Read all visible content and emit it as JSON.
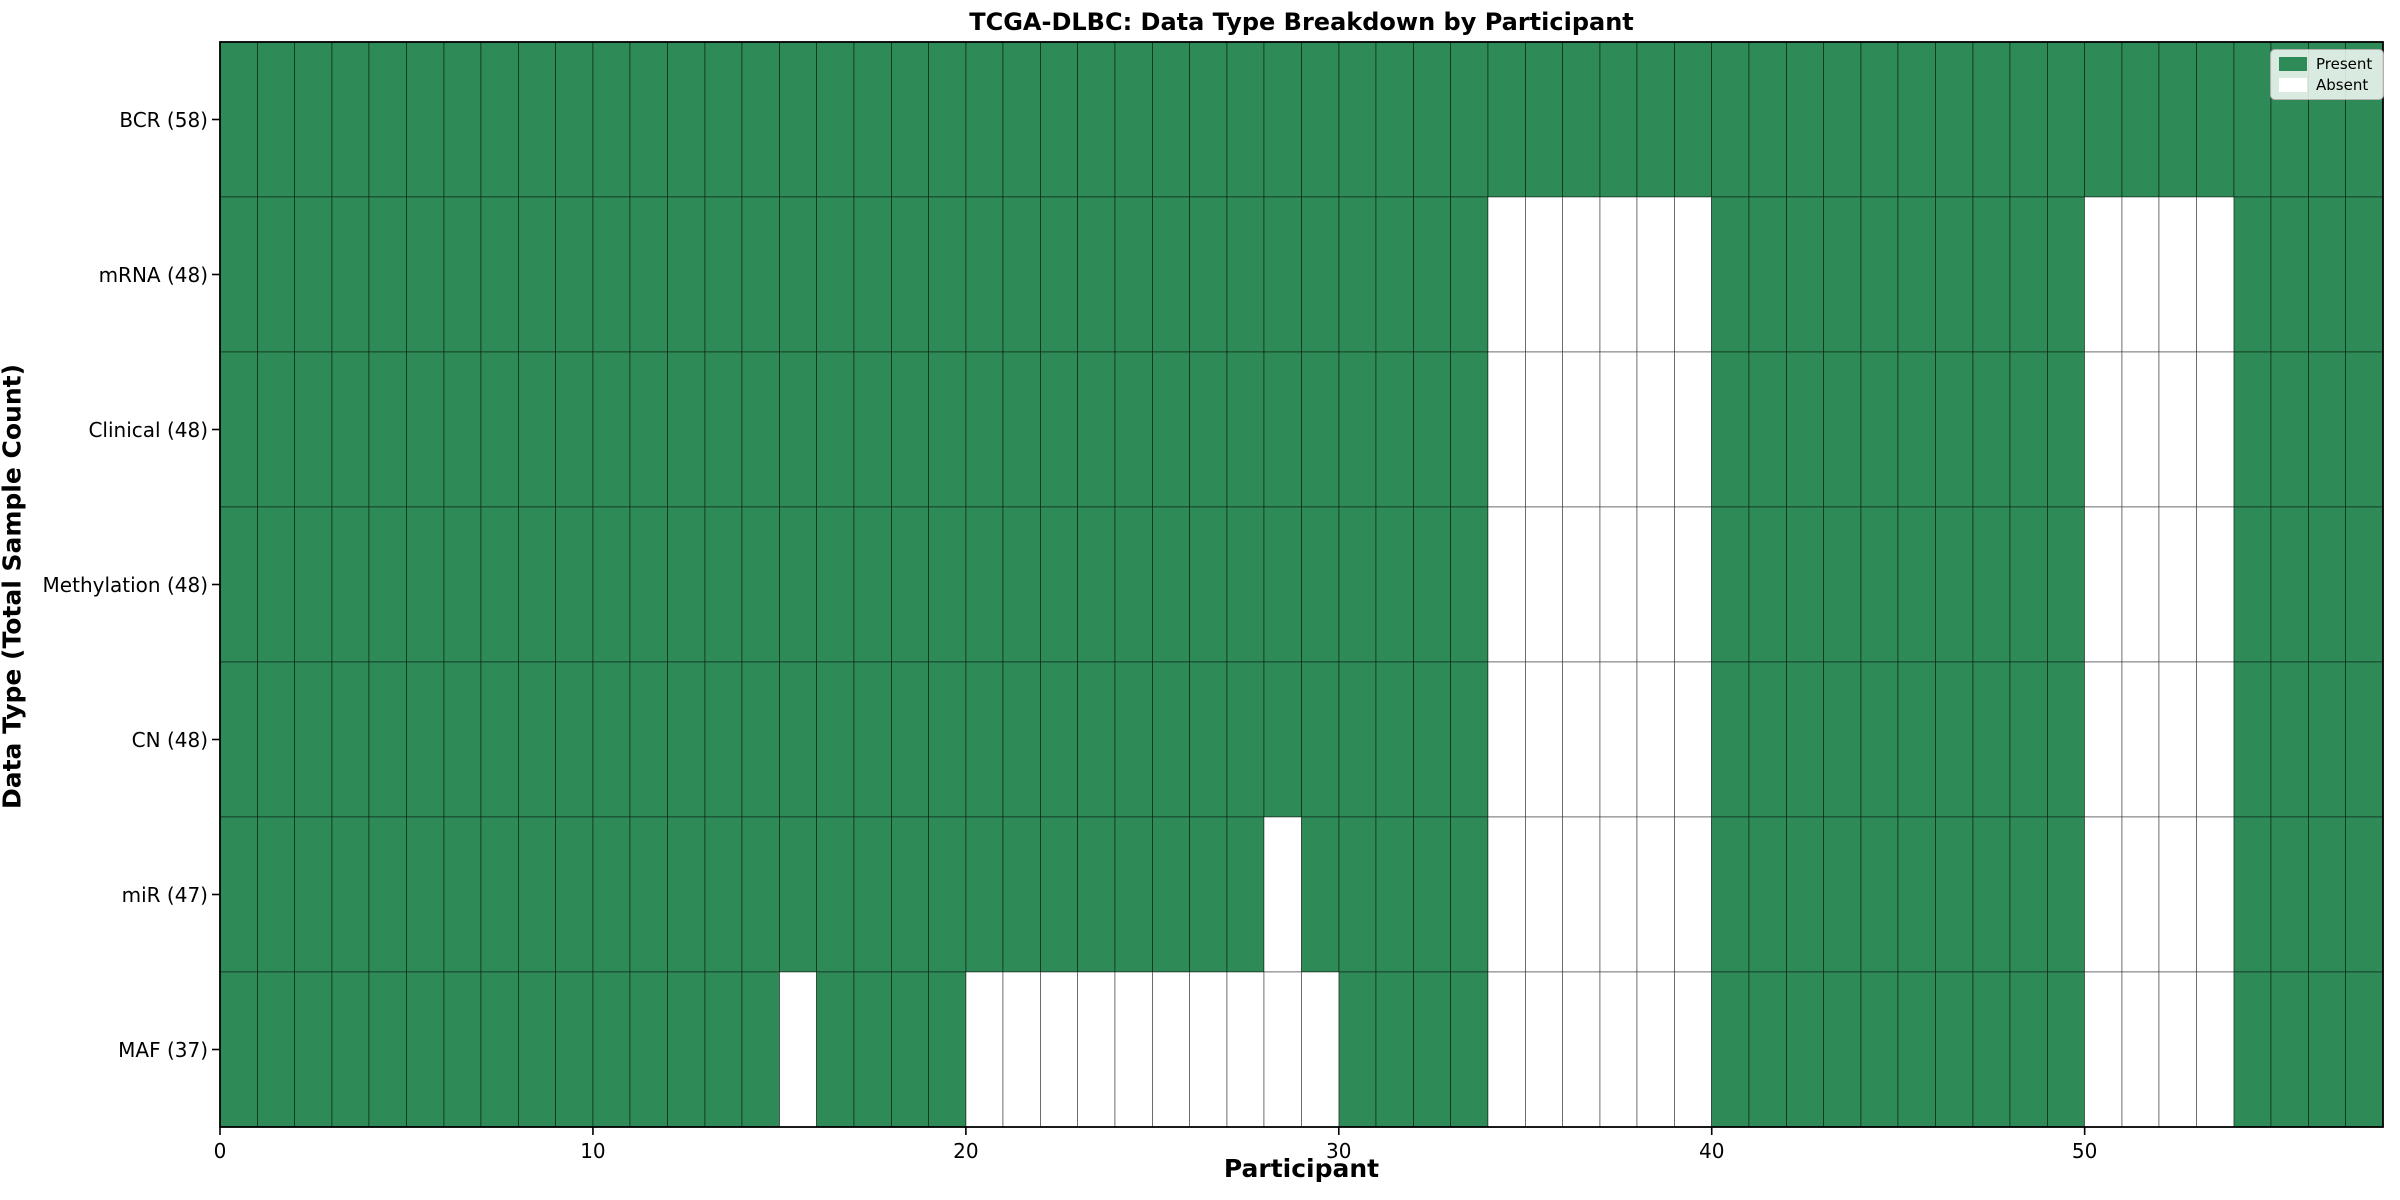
{
  "figure": {
    "title": "TCGA-DLBC: Data Type Breakdown by Participant",
    "xlabel": "Participant",
    "ylabel": "Data Type (Total Sample Count)"
  },
  "legend": {
    "items": [
      {
        "label": "Present",
        "color": "#2e8b57"
      },
      {
        "label": "Absent",
        "color": "#ffffff"
      }
    ]
  },
  "chart_data": {
    "type": "heatmap",
    "title": "TCGA-DLBC: Data Type Breakdown by Participant",
    "xlabel": "Participant",
    "ylabel": "Data Type (Total Sample Count)",
    "n_participants": 58,
    "x_range": [
      0,
      58
    ],
    "x_ticks": [
      0,
      10,
      20,
      30,
      40,
      50
    ],
    "cell_states": [
      "present",
      "absent"
    ],
    "rows": [
      {
        "label": "BCR (58)",
        "data_type": "BCR",
        "total_samples": 58,
        "absent_participants": []
      },
      {
        "label": "mRNA (48)",
        "data_type": "mRNA",
        "total_samples": 48,
        "absent_participants": [
          34,
          35,
          36,
          37,
          38,
          39,
          50,
          51,
          52,
          53
        ]
      },
      {
        "label": "Clinical (48)",
        "data_type": "Clinical",
        "total_samples": 48,
        "absent_participants": [
          34,
          35,
          36,
          37,
          38,
          39,
          50,
          51,
          52,
          53
        ]
      },
      {
        "label": "Methylation (48)",
        "data_type": "Methylation",
        "total_samples": 48,
        "absent_participants": [
          34,
          35,
          36,
          37,
          38,
          39,
          50,
          51,
          52,
          53
        ]
      },
      {
        "label": "CN (48)",
        "data_type": "CN",
        "total_samples": 48,
        "absent_participants": [
          34,
          35,
          36,
          37,
          38,
          39,
          50,
          51,
          52,
          53
        ]
      },
      {
        "label": "miR (47)",
        "data_type": "miR",
        "total_samples": 47,
        "absent_participants": [
          28,
          34,
          35,
          36,
          37,
          38,
          39,
          50,
          51,
          52,
          53
        ]
      },
      {
        "label": "MAF (37)",
        "data_type": "MAF",
        "total_samples": 37,
        "absent_participants": [
          15,
          20,
          21,
          22,
          23,
          24,
          25,
          26,
          27,
          28,
          29,
          34,
          35,
          36,
          37,
          38,
          39,
          50,
          51,
          52,
          53
        ]
      }
    ],
    "colors": {
      "present": "#2e8b57",
      "absent": "#ffffff",
      "cell_edge": "rgba(0,0,0,0.45)",
      "spine": "#000000"
    },
    "legend": [
      {
        "label": "Present",
        "color": "#2e8b57"
      },
      {
        "label": "Absent",
        "color": "#ffffff"
      }
    ],
    "legend_position": "upper right",
    "grid": "cell-edges"
  }
}
